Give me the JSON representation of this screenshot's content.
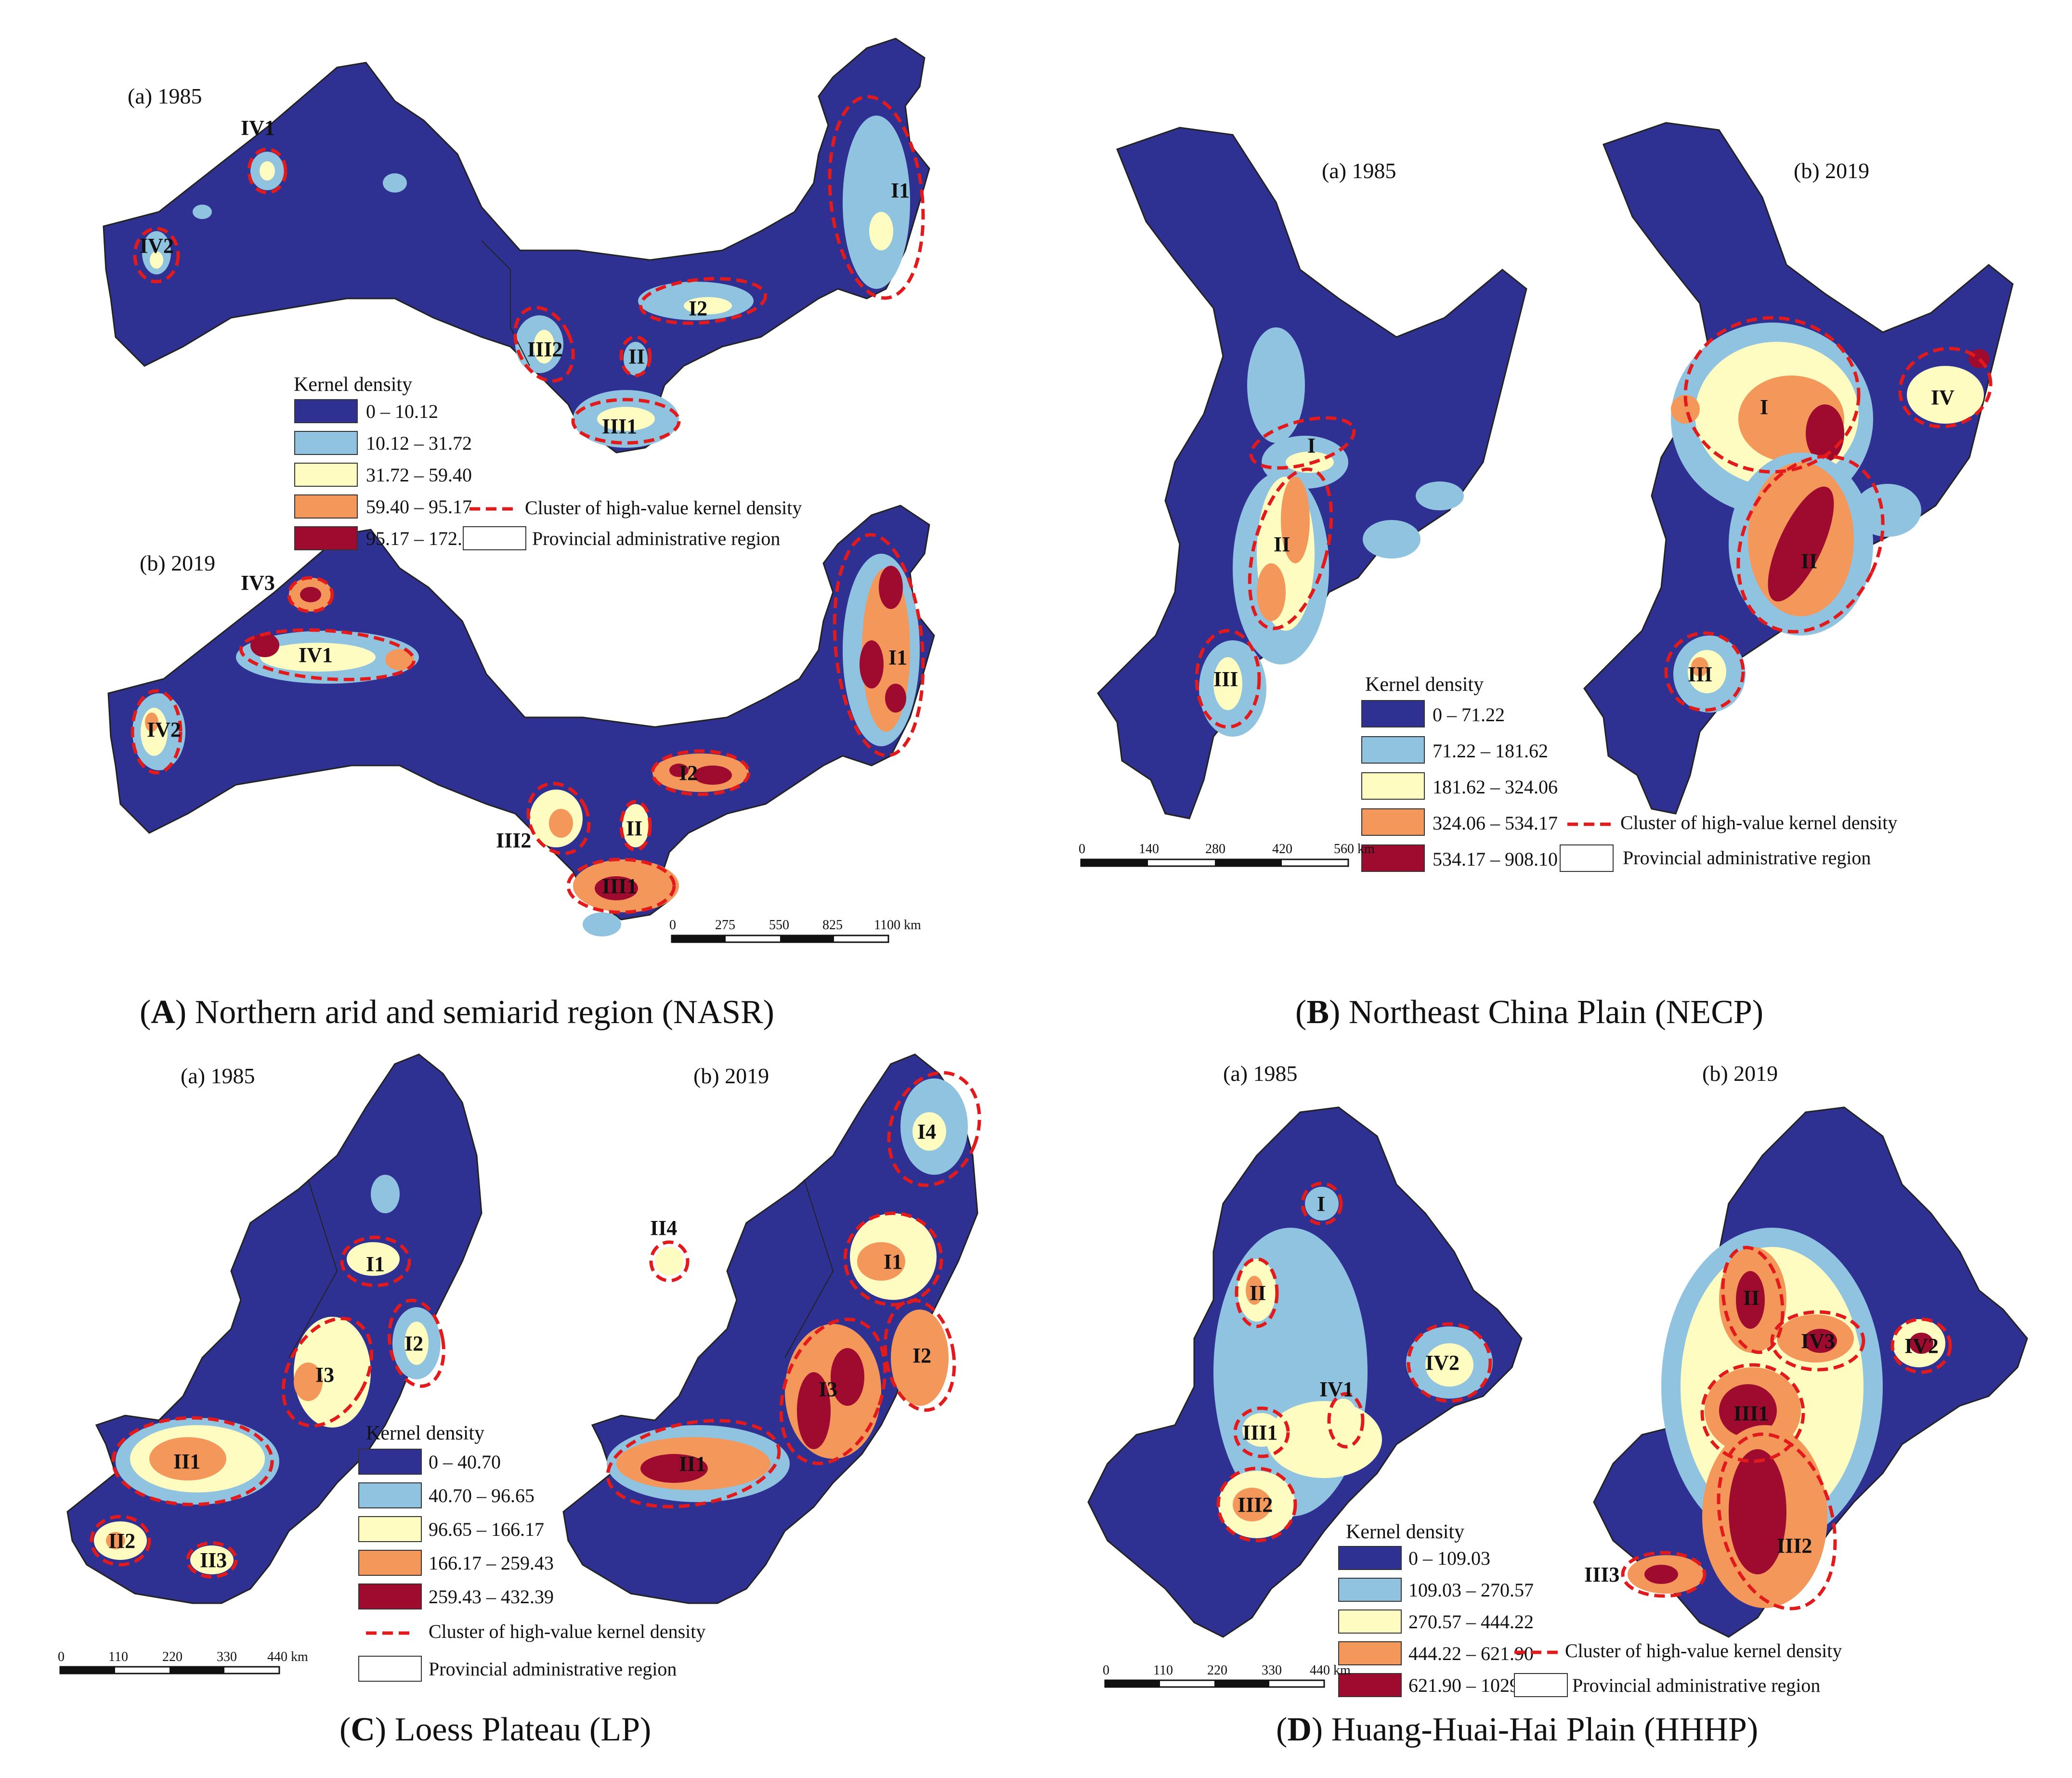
{
  "colors": {
    "c1": "#2e3192",
    "c2": "#8fc3df",
    "c3": "#fefcc0",
    "c4": "#f4975a",
    "c5": "#9e0b2e",
    "cluster": "#e31a1c",
    "boundary": "#333333"
  },
  "legend_common": {
    "title": "Kernel density",
    "cluster": "Cluster of high-value kernel density",
    "province": "Provincial administrative region"
  },
  "panels": {
    "A": {
      "letter": "A",
      "caption": "Northern arid and semiarid region (NASR)",
      "year_a": "(a) 1985",
      "year_b": "(b) 2019",
      "classes": [
        "0 – 10.12",
        "10.12 – 31.72",
        "31.72 – 59.40",
        "59.40 – 95.17",
        "95.17 – 172.13"
      ],
      "scale_ticks": [
        "0",
        "275",
        "550",
        "825",
        "1100 km"
      ],
      "clusters_a": [
        "IV1",
        "IV2",
        "I1",
        "I2",
        "III2",
        "II",
        "III1"
      ],
      "clusters_b": [
        "IV3",
        "IV1",
        "IV2",
        "I1",
        "I2",
        "III2",
        "II",
        "III1"
      ]
    },
    "B": {
      "letter": "B",
      "caption": "Northeast China Plain (NECP)",
      "year_a": "(a) 1985",
      "year_b": "(b) 2019",
      "classes": [
        "0 – 71.22",
        "71.22 – 181.62",
        "181.62 – 324.06",
        "324.06 – 534.17",
        "534.17 – 908.10"
      ],
      "scale_ticks": [
        "0",
        "140",
        "280",
        "420",
        "560 km"
      ],
      "clusters_a": [
        "I",
        "II",
        "III"
      ],
      "clusters_b": [
        "I",
        "IV",
        "II",
        "III"
      ]
    },
    "C": {
      "letter": "C",
      "caption": "Loess Plateau (LP)",
      "year_a": "(a) 1985",
      "year_b": "(b) 2019",
      "classes": [
        "0 – 40.70",
        "40.70 – 96.65",
        "96.65 – 166.17",
        "166.17 – 259.43",
        "259.43 – 432.39"
      ],
      "scale_ticks": [
        "0",
        "110",
        "220",
        "330",
        "440 km"
      ],
      "clusters_a": [
        "I1",
        "I2",
        "I3",
        "II1",
        "II2",
        "II3"
      ],
      "clusters_b": [
        "I4",
        "II4",
        "I1",
        "I2",
        "I3",
        "II1"
      ]
    },
    "D": {
      "letter": "D",
      "caption": "Huang-Huai-Hai Plain (HHHP)",
      "year_a": "(a) 1985",
      "year_b": "(b) 2019",
      "classes": [
        "0 – 109.03",
        "109.03 – 270.57",
        "270.57 – 444.22",
        "444.22 – 621.90",
        "621.90 – 1029.78"
      ],
      "scale_ticks": [
        "0",
        "110",
        "220",
        "330",
        "440 km"
      ],
      "clusters_a": [
        "I",
        "II",
        "IV2",
        "IV1",
        "III1",
        "III2"
      ],
      "clusters_b": [
        "II",
        "IV3",
        "IV2",
        "III1",
        "III2",
        "III3"
      ]
    }
  }
}
